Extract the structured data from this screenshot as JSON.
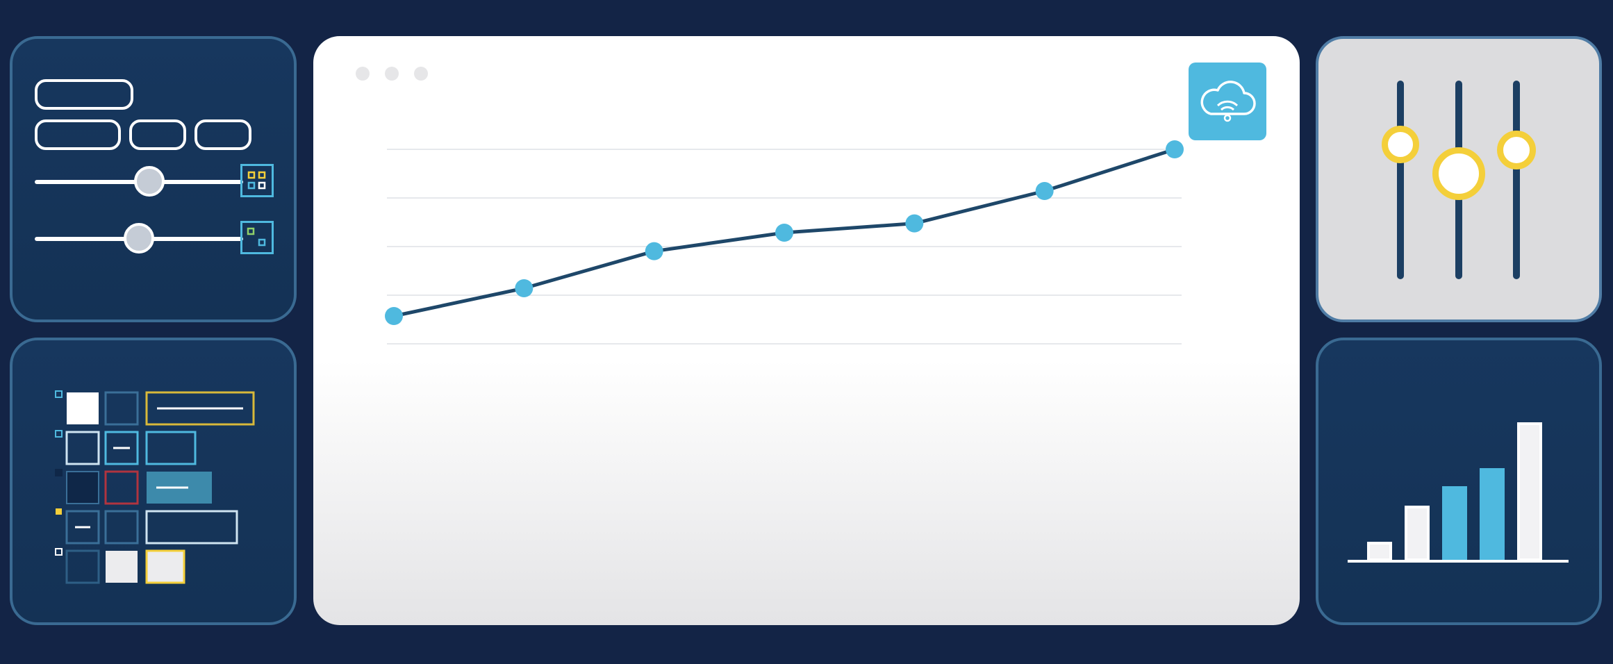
{
  "colors": {
    "background": "#132446",
    "panel_dark": "#17375e",
    "accent_blue": "#4fb9df",
    "accent_yellow": "#f4cf3a",
    "line_navy": "#1c3f63"
  },
  "icons": {
    "cloud": "cloud-wifi-icon",
    "widget_1": "grid-widget-icon",
    "widget_2": "corner-widget-icon"
  },
  "sliders": [
    {
      "value": 0.55
    },
    {
      "value": 0.5
    }
  ],
  "mixer": {
    "faders": [
      {
        "level": 0.68
      },
      {
        "level": 0.53
      },
      {
        "level": 0.65
      }
    ]
  },
  "chart_data": {
    "type": "line",
    "title": "",
    "xlabel": "",
    "ylabel": "",
    "x": [
      1,
      2,
      3,
      4,
      5,
      6,
      7
    ],
    "series": [
      {
        "values": [
          0.6,
          1.2,
          2.0,
          2.4,
          2.6,
          3.3,
          4.2
        ]
      }
    ],
    "ylim": [
      0,
      4.2
    ],
    "grid": "horizontal",
    "legend": "none"
  },
  "bar_chart": {
    "type": "bar",
    "values": [
      0.14,
      0.4,
      0.54,
      0.67,
      1.0
    ],
    "styles": [
      "outline",
      "outline",
      "filled",
      "filled",
      "outline"
    ]
  }
}
